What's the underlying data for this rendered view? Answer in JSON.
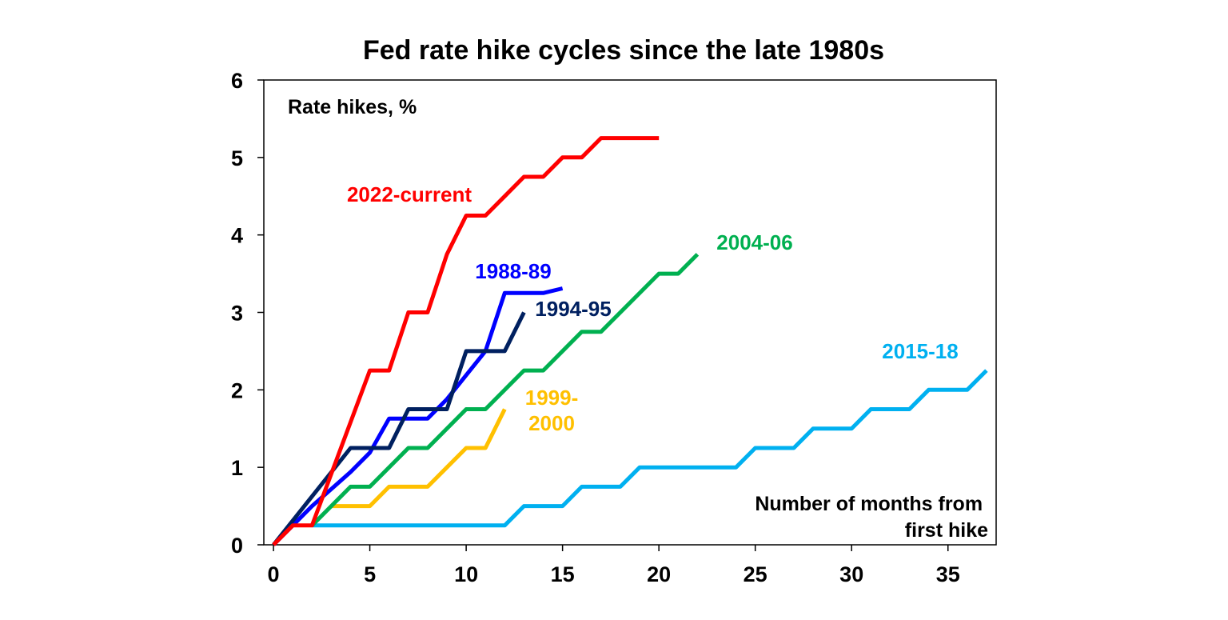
{
  "chart_data": {
    "type": "line",
    "title": "Fed rate hike cycles since the late 1980s",
    "ylabel": "Rate hikes, %",
    "xlabel_lines": [
      "Number of months from",
      "first hike"
    ],
    "xlim": [
      -0.5,
      37.5
    ],
    "ylim": [
      0,
      6
    ],
    "x_ticks": [
      0,
      5,
      10,
      15,
      20,
      25,
      30,
      35
    ],
    "y_ticks": [
      0,
      1,
      2,
      3,
      4,
      5,
      6
    ],
    "grid": false,
    "series": [
      {
        "name": "2015-18",
        "label_lines": [
          "2015-18"
        ],
        "color": "#00B0F0",
        "x": [
          2,
          12,
          13,
          15,
          16,
          18,
          19,
          24,
          25,
          27,
          28,
          30,
          31,
          33,
          34,
          36,
          37
        ],
        "y": [
          0.25,
          0.25,
          0.5,
          0.5,
          0.75,
          0.75,
          1.0,
          1.0,
          1.25,
          1.25,
          1.5,
          1.5,
          1.75,
          1.75,
          2.0,
          2.0,
          2.25
        ]
      },
      {
        "name": "1999-2000",
        "label_lines": [
          "1999-",
          "2000"
        ],
        "color": "#FFC000",
        "x": [
          3,
          5,
          6,
          8,
          9,
          10,
          11,
          12
        ],
        "y": [
          0.5,
          0.5,
          0.75,
          0.75,
          1.0,
          1.25,
          1.25,
          1.75
        ]
      },
      {
        "name": "2004-06",
        "label_lines": [
          "2004-06"
        ],
        "color": "#00B050",
        "x": [
          2,
          4,
          5,
          7,
          8,
          10,
          11,
          13,
          14,
          16,
          17,
          20,
          21,
          22
        ],
        "y": [
          0.25,
          0.75,
          0.75,
          1.25,
          1.25,
          1.75,
          1.75,
          2.25,
          2.25,
          2.75,
          2.75,
          3.5,
          3.5,
          3.75
        ]
      },
      {
        "name": "1988-89",
        "label_lines": [
          "1988-89"
        ],
        "color": "#0000FF",
        "x": [
          0,
          1,
          2,
          4,
          5,
          6,
          7,
          8,
          9,
          10,
          11,
          12,
          13,
          14,
          15
        ],
        "y": [
          0,
          0.25,
          0.5,
          0.94,
          1.19,
          1.63,
          1.63,
          1.63,
          1.88,
          2.19,
          2.5,
          3.25,
          3.25,
          3.25,
          3.31
        ]
      },
      {
        "name": "1994-95",
        "label_lines": [
          "1994-95"
        ],
        "color": "#002060",
        "x": [
          0,
          4,
          5,
          6,
          7,
          9,
          10,
          12,
          13
        ],
        "y": [
          0,
          1.25,
          1.25,
          1.25,
          1.75,
          1.75,
          2.5,
          2.5,
          3.0
        ]
      },
      {
        "name": "2022-current",
        "label_lines": [
          "2022-current"
        ],
        "color": "#FF0000",
        "x": [
          0,
          1,
          2,
          5,
          6,
          7,
          8,
          9,
          10,
          11,
          12,
          13,
          14,
          15,
          16,
          17,
          18,
          19,
          20
        ],
        "y": [
          0,
          0.25,
          0.25,
          2.25,
          2.25,
          3.0,
          3.0,
          3.75,
          4.25,
          4.25,
          4.5,
          4.75,
          4.75,
          5.0,
          5.0,
          5.25,
          5.25,
          5.25,
          5.25
        ]
      }
    ]
  }
}
